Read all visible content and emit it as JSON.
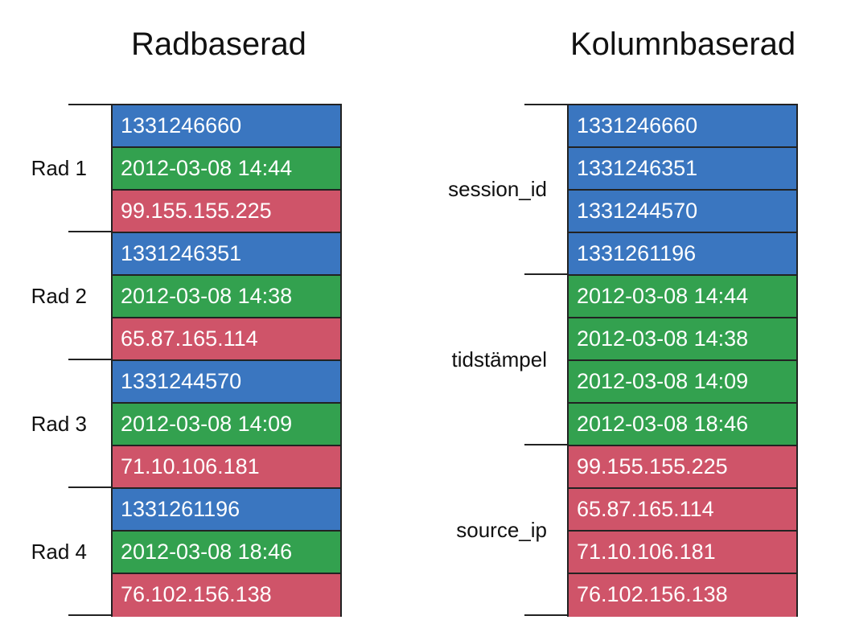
{
  "colors": {
    "session_id": "#3a76c0",
    "tidstampel": "#33a14f",
    "source_ip": "#cf5469",
    "border": "#222222"
  },
  "row_oriented": {
    "title": "Radbaserad",
    "groups": [
      {
        "label": "Rad 1",
        "cells": [
          {
            "type": "blue",
            "value": "1331246660"
          },
          {
            "type": "green",
            "value": "2012-03-08 14:44"
          },
          {
            "type": "red",
            "value": "99.155.155.225"
          }
        ]
      },
      {
        "label": "Rad 2",
        "cells": [
          {
            "type": "blue",
            "value": "1331246351"
          },
          {
            "type": "green",
            "value": "2012-03-08 14:38"
          },
          {
            "type": "red",
            "value": "65.87.165.114"
          }
        ]
      },
      {
        "label": "Rad 3",
        "cells": [
          {
            "type": "blue",
            "value": "1331244570"
          },
          {
            "type": "green",
            "value": "2012-03-08 14:09"
          },
          {
            "type": "red",
            "value": "71.10.106.181"
          }
        ]
      },
      {
        "label": "Rad 4",
        "cells": [
          {
            "type": "blue",
            "value": "1331261196"
          },
          {
            "type": "green",
            "value": "2012-03-08 18:46"
          },
          {
            "type": "red",
            "value": "76.102.156.138"
          }
        ]
      }
    ]
  },
  "column_oriented": {
    "title": "Kolumnbaserad",
    "groups": [
      {
        "label": "session_id",
        "cells": [
          {
            "type": "blue",
            "value": "1331246660"
          },
          {
            "type": "blue",
            "value": "1331246351"
          },
          {
            "type": "blue",
            "value": "1331244570"
          },
          {
            "type": "blue",
            "value": "1331261196"
          }
        ]
      },
      {
        "label": "tidstämpel",
        "cells": [
          {
            "type": "green",
            "value": "2012-03-08 14:44"
          },
          {
            "type": "green",
            "value": "2012-03-08 14:38"
          },
          {
            "type": "green",
            "value": "2012-03-08 14:09"
          },
          {
            "type": "green",
            "value": "2012-03-08 18:46"
          }
        ]
      },
      {
        "label": "source_ip",
        "cells": [
          {
            "type": "red",
            "value": "99.155.155.225"
          },
          {
            "type": "red",
            "value": "65.87.165.114"
          },
          {
            "type": "red",
            "value": "71.10.106.181"
          },
          {
            "type": "red",
            "value": "76.102.156.138"
          }
        ]
      }
    ]
  }
}
